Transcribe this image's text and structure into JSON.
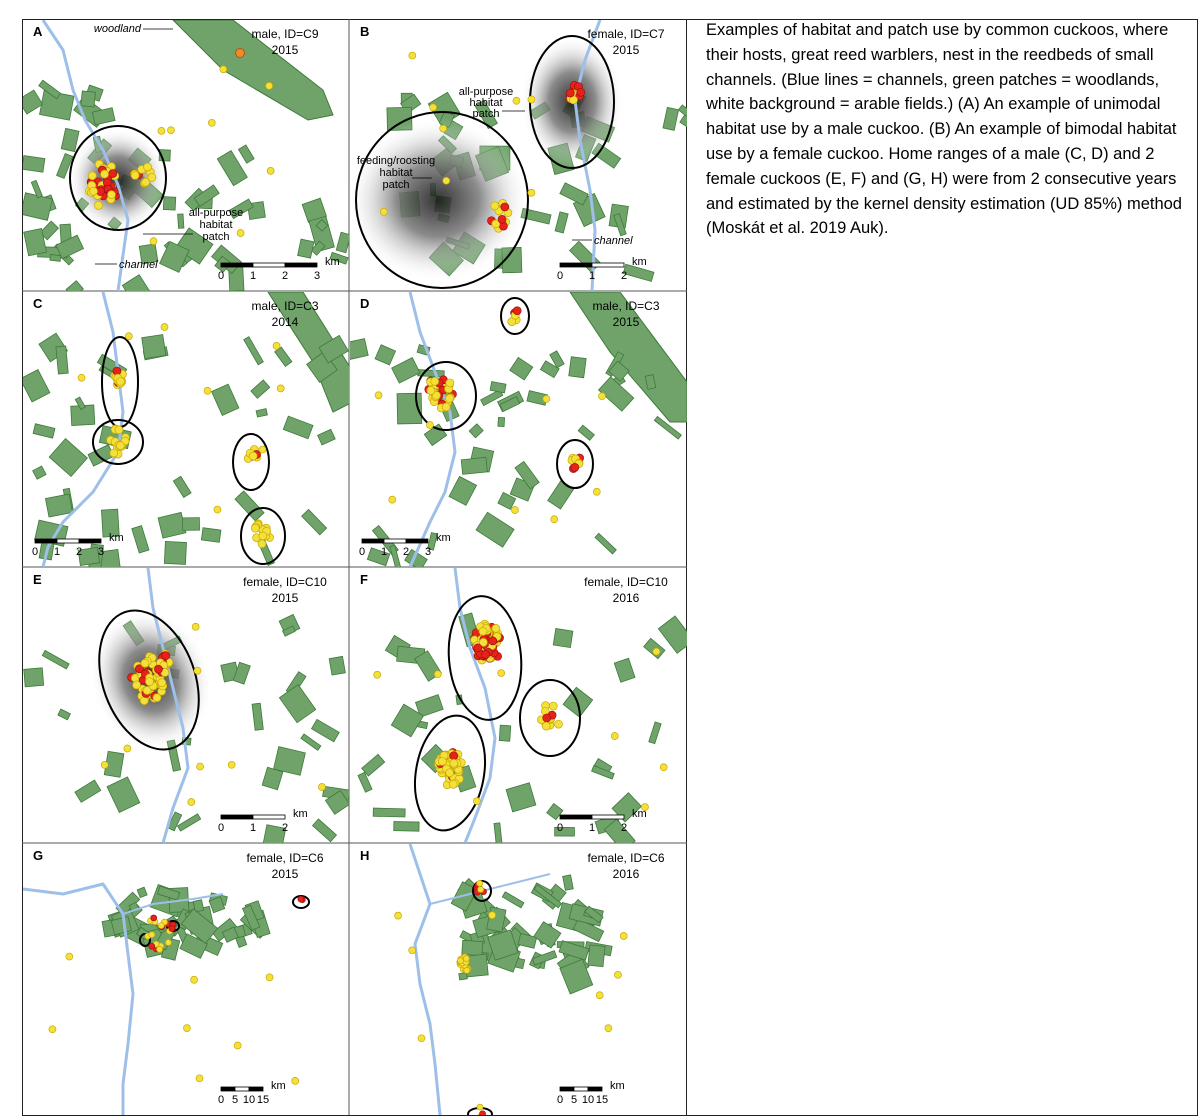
{
  "caption": "Examples of habitat and patch use by common cuckoos, where their hosts, great reed warblers, nest in the reedbeds of small channels. (Blue lines = channels, green patches = woodlands, white background = arable fields.) (A) An example of unimodal habitat use by a male cuckoo. (B) An example of bimodal habitat use by a female cuckoo. Home ranges of a male (C, D) and 2 female cuckoos (E, F) and (G, H) were from 2 consecutive years and estimated by the kernel density estimation (UD 85%) method (Moskát et al. 2019 Auk).",
  "colors": {
    "woodland": "#6fa36a",
    "woodland_edge": "#3f7a3a",
    "channel": "#9dbfe8",
    "fix_yellow": "#f4e03a",
    "fix_orange": "#f08a2a",
    "fix_red": "#e5231b"
  },
  "panels": [
    {
      "letter": "A",
      "label1": "male, ID=C9",
      "label2": "2015",
      "scale_ticks": [
        "0",
        "1",
        "2",
        "3"
      ],
      "scale_unit": "km",
      "annotations": [
        {
          "text": "woodland",
          "italic": true
        },
        {
          "text": "all-purpose",
          "italic": false
        },
        {
          "text": "habitat",
          "italic": false
        },
        {
          "text": "patch",
          "italic": false
        },
        {
          "text": "channel",
          "italic": true
        }
      ]
    },
    {
      "letter": "B",
      "label1": "female, ID=C7",
      "label2": "2015",
      "scale_ticks": [
        "0",
        "1",
        "2"
      ],
      "scale_unit": "km",
      "annotations": [
        {
          "text": "all-purpose",
          "italic": false
        },
        {
          "text": "habitat",
          "italic": false
        },
        {
          "text": "patch",
          "italic": false
        },
        {
          "text": "feeding/roosting",
          "italic": false
        },
        {
          "text": "habitat",
          "italic": false
        },
        {
          "text": "patch",
          "italic": false
        },
        {
          "text": "channel",
          "italic": true
        }
      ]
    },
    {
      "letter": "C",
      "label1": "male, ID=C3",
      "label2": "2014",
      "scale_ticks": [
        "0",
        "1",
        "2",
        "3"
      ],
      "scale_unit": "km",
      "annotations": []
    },
    {
      "letter": "D",
      "label1": "male, ID=C3",
      "label2": "2015",
      "scale_ticks": [
        "0",
        "1",
        "2",
        "3"
      ],
      "scale_unit": "km",
      "annotations": []
    },
    {
      "letter": "E",
      "label1": "female, ID=C10",
      "label2": "2015",
      "scale_ticks": [
        "0",
        "1",
        "2"
      ],
      "scale_unit": "km",
      "annotations": []
    },
    {
      "letter": "F",
      "label1": "female, ID=C10",
      "label2": "2016",
      "scale_ticks": [
        "0",
        "1",
        "2"
      ],
      "scale_unit": "km",
      "annotations": []
    },
    {
      "letter": "G",
      "label1": "female, ID=C6",
      "label2": "2015",
      "scale_ticks": [
        "0",
        "5",
        "10",
        "15"
      ],
      "scale_unit": "km",
      "annotations": []
    },
    {
      "letter": "H",
      "label1": "female, ID=C6",
      "label2": "2016",
      "scale_ticks": [
        "0",
        "5",
        "10",
        "15"
      ],
      "scale_unit": "km",
      "annotations": []
    }
  ]
}
